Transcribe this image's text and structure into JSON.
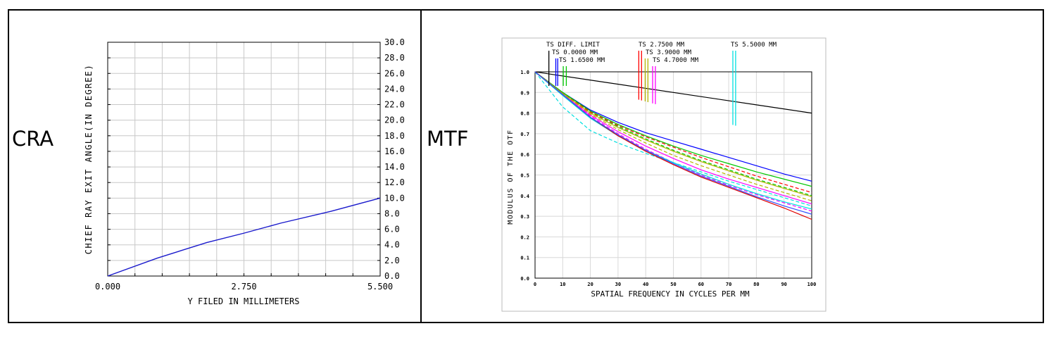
{
  "panels": {
    "left_label": "CRA",
    "right_label": "MTF"
  },
  "chart_data": [
    {
      "type": "line",
      "xlabel": "Y FILED IN MILLIMETERS",
      "ylabel": "CHIEF RAY EXIT ANGLE(IN DEGREE)",
      "xlim": [
        0,
        5.5
      ],
      "ylim": [
        0,
        30
      ],
      "x_tick_labels": [
        "0.000",
        "2.750",
        "5.500"
      ],
      "y_tick_labels": [
        "0.0",
        "2.0",
        "4.0",
        "6.0",
        "8.0",
        "10.0",
        "12.0",
        "14.0",
        "16.0",
        "18.0",
        "20.0",
        "22.0",
        "24.0",
        "26.0",
        "28.0",
        "30.0"
      ],
      "grid": true,
      "series": [
        {
          "color": "#1a1acc",
          "x": [
            0,
            1.0,
            2.0,
            2.75,
            3.5,
            4.5,
            5.5
          ],
          "y": [
            0,
            2.3,
            4.3,
            5.5,
            6.8,
            8.3,
            10.0
          ]
        }
      ]
    },
    {
      "type": "line",
      "xlabel": "SPATIAL FREQUENCY IN CYCLES PER MM",
      "ylabel": "MODULUS OF THE OTF",
      "xlim": [
        0,
        100
      ],
      "ylim": [
        0,
        1
      ],
      "x_tick_labels": [
        "0",
        "10",
        "20",
        "30",
        "40",
        "50",
        "60",
        "70",
        "80",
        "90",
        "100"
      ],
      "y_tick_labels": [
        "0.0",
        "0.1",
        "0.2",
        "0.3",
        "0.4",
        "0.5",
        "0.6",
        "0.7",
        "0.8",
        "0.9",
        "1.0"
      ],
      "grid": true,
      "legend": [
        {
          "label": "TS DIFF. LIMIT",
          "colors": [
            "#000000"
          ],
          "x": [
            5
          ]
        },
        {
          "label": "TS 0.0000 MM",
          "colors": [
            "#0000ff",
            "#0000ff"
          ],
          "x": [
            7.5,
            8.2
          ]
        },
        {
          "label": "TS 1.6500 MM",
          "colors": [
            "#00c800",
            "#00c800"
          ],
          "x": [
            10.2,
            11.3
          ]
        },
        {
          "label": "TS 2.7500 MM",
          "colors": [
            "#ff0000",
            "#ff0000"
          ],
          "x": [
            37.5,
            38.5
          ]
        },
        {
          "label": "TS 3.9000 MM",
          "colors": [
            "#b4b400",
            "#b4b400"
          ],
          "x": [
            39.8,
            40.8
          ]
        },
        {
          "label": "TS 4.7000 MM",
          "colors": [
            "#ff00ff",
            "#ff00ff"
          ],
          "x": [
            42.5,
            43.5
          ]
        },
        {
          "label": "TS 5.5000 MM",
          "colors": [
            "#00e0e0",
            "#00e0e0"
          ],
          "x": [
            71.5,
            72.5
          ]
        }
      ],
      "series": [
        {
          "color": "#000000",
          "dashed": false,
          "x": [
            0,
            20,
            40,
            60,
            80,
            100
          ],
          "y": [
            1.0,
            0.96,
            0.92,
            0.88,
            0.84,
            0.8
          ]
        },
        {
          "color": "#0000ff",
          "dashed": false,
          "x": [
            0,
            10,
            20,
            30,
            40,
            50,
            60,
            70,
            80,
            90,
            100
          ],
          "y": [
            1.0,
            0.9,
            0.815,
            0.755,
            0.705,
            0.665,
            0.625,
            0.585,
            0.545,
            0.505,
            0.47
          ]
        },
        {
          "color": "#00c800",
          "dashed": false,
          "x": [
            0,
            10,
            20,
            30,
            40,
            50,
            60,
            70,
            80,
            90,
            100
          ],
          "y": [
            1.0,
            0.9,
            0.81,
            0.745,
            0.69,
            0.64,
            0.595,
            0.555,
            0.515,
            0.48,
            0.445
          ]
        },
        {
          "color": "#00c800",
          "dashed": true,
          "x": [
            0,
            10,
            20,
            30,
            40,
            50,
            60,
            70,
            80,
            90,
            100
          ],
          "y": [
            1.0,
            0.895,
            0.805,
            0.735,
            0.675,
            0.62,
            0.57,
            0.525,
            0.48,
            0.44,
            0.4
          ]
        },
        {
          "color": "#ff0000",
          "dashed": true,
          "x": [
            0,
            10,
            20,
            30,
            40,
            50,
            60,
            70,
            80,
            90,
            100
          ],
          "y": [
            1.0,
            0.895,
            0.805,
            0.74,
            0.685,
            0.635,
            0.585,
            0.54,
            0.495,
            0.455,
            0.415
          ]
        },
        {
          "color": "#b4b400",
          "dashed": false,
          "x": [
            0,
            10,
            20,
            30,
            40,
            50,
            60,
            70,
            80,
            90,
            100
          ],
          "y": [
            1.0,
            0.895,
            0.8,
            0.73,
            0.67,
            0.615,
            0.565,
            0.52,
            0.475,
            0.435,
            0.395
          ]
        },
        {
          "color": "#b4b400",
          "dashed": true,
          "x": [
            0,
            10,
            20,
            30,
            40,
            50,
            60,
            70,
            80,
            90,
            100
          ],
          "y": [
            1.0,
            0.892,
            0.795,
            0.72,
            0.655,
            0.595,
            0.545,
            0.5,
            0.455,
            0.415,
            0.375
          ]
        },
        {
          "color": "#ff00ff",
          "dashed": false,
          "x": [
            0,
            10,
            20,
            30,
            40,
            50,
            60,
            70,
            80,
            90,
            100
          ],
          "y": [
            1.0,
            0.89,
            0.79,
            0.71,
            0.64,
            0.58,
            0.525,
            0.48,
            0.44,
            0.4,
            0.36
          ]
        },
        {
          "color": "#ff00ff",
          "dashed": true,
          "x": [
            0,
            10,
            20,
            30,
            40,
            50,
            60,
            70,
            80,
            90,
            100
          ],
          "y": [
            1.0,
            0.89,
            0.785,
            0.7,
            0.625,
            0.56,
            0.5,
            0.45,
            0.405,
            0.365,
            0.325
          ]
        },
        {
          "color": "#00e0e0",
          "dashed": false,
          "x": [
            0,
            10,
            20,
            30,
            40,
            50,
            60,
            70,
            80,
            90,
            100
          ],
          "y": [
            1.0,
            0.885,
            0.775,
            0.69,
            0.62,
            0.56,
            0.505,
            0.455,
            0.41,
            0.37,
            0.335
          ]
        },
        {
          "color": "#00e0e0",
          "dashed": true,
          "x": [
            0,
            10,
            20,
            30,
            40,
            50,
            60,
            70,
            80,
            90,
            100
          ],
          "y": [
            1.0,
            0.83,
            0.715,
            0.655,
            0.605,
            0.56,
            0.515,
            0.47,
            0.43,
            0.39,
            0.35
          ]
        },
        {
          "color": "#e00000",
          "dashed": false,
          "x": [
            0,
            10,
            20,
            30,
            40,
            50,
            60,
            70,
            80,
            90,
            100
          ],
          "y": [
            1.0,
            0.89,
            0.78,
            0.69,
            0.615,
            0.55,
            0.49,
            0.44,
            0.39,
            0.34,
            0.285
          ]
        },
        {
          "color": "#3050ff",
          "dashed": false,
          "x": [
            0,
            10,
            20,
            30,
            40,
            50,
            60,
            70,
            80,
            90,
            100
          ],
          "y": [
            1.0,
            0.89,
            0.78,
            0.695,
            0.62,
            0.555,
            0.495,
            0.445,
            0.395,
            0.35,
            0.31
          ]
        }
      ]
    }
  ]
}
